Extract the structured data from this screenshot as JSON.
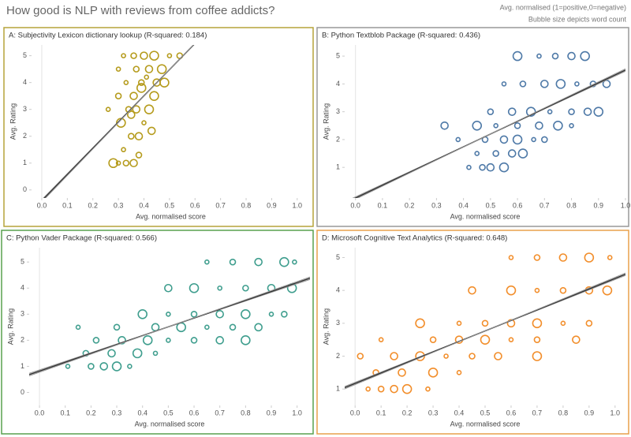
{
  "header": {
    "title": "How good is NLP with reviews from coffee addicts?",
    "notes": [
      "Avg. normalised (1=positive,0=negative)",
      "Bubble size depicts word count"
    ]
  },
  "chart_data": [
    {
      "type": "scatter",
      "title": "A: Subjectivity Lexicon dictionary lookup (R-squared: 0.184)",
      "x_label": "Avg. normalised score",
      "y_label": "Avg. Rating",
      "color": "#b59b1c",
      "border": "#b5a33a",
      "x": [
        0.3,
        0.33,
        0.36,
        0.28,
        0.32,
        0.35,
        0.38,
        0.31,
        0.4,
        0.34,
        0.37,
        0.42,
        0.26,
        0.3,
        0.36,
        0.44,
        0.33,
        0.39,
        0.45,
        0.48,
        0.3,
        0.37,
        0.42,
        0.47,
        0.32,
        0.36,
        0.4,
        0.44,
        0.5,
        0.54,
        0.35,
        0.39,
        0.41,
        0.38,
        0.43
      ],
      "y": [
        1,
        1,
        1,
        1,
        1.5,
        2,
        2,
        2.5,
        2.5,
        3,
        3,
        3,
        3,
        3.5,
        3.5,
        3.5,
        4,
        4,
        4,
        4,
        4.5,
        4.5,
        4.5,
        4.5,
        5,
        5,
        5,
        5,
        5,
        5,
        2.8,
        3.8,
        4.2,
        1.3,
        2.2
      ],
      "xlim": [
        -0.04,
        1.05
      ],
      "ylim": [
        -0.3,
        5.4
      ],
      "xticks": [
        {
          "value": 0,
          "label": "0.0"
        },
        0.1,
        0.2,
        0.3,
        0.4,
        0.5,
        0.6,
        0.7,
        0.8,
        0.9,
        {
          "value": 1,
          "label": "1.0"
        }
      ],
      "yticks": [
        0,
        1,
        2,
        3,
        4,
        5
      ]
    },
    {
      "type": "scatter",
      "title": "B: Python Textblob Package (R-squared: 0.436)",
      "x_label": "Avg. normalised score",
      "y_label": "Avg. Rating",
      "color": "#4e79a7",
      "border": "#999999",
      "x": [
        0.42,
        0.47,
        0.5,
        0.55,
        0.45,
        0.52,
        0.58,
        0.62,
        0.38,
        0.48,
        0.55,
        0.6,
        0.66,
        0.7,
        0.33,
        0.45,
        0.52,
        0.6,
        0.68,
        0.75,
        0.8,
        0.5,
        0.58,
        0.65,
        0.72,
        0.8,
        0.86,
        0.9,
        0.55,
        0.62,
        0.7,
        0.76,
        0.82,
        0.88,
        0.93,
        0.6,
        0.68,
        0.74,
        0.8,
        0.85
      ],
      "y": [
        1,
        1,
        1,
        1,
        1.5,
        1.5,
        1.5,
        1.5,
        2,
        2,
        2,
        2,
        2,
        2,
        2.5,
        2.5,
        2.5,
        2.5,
        2.5,
        2.5,
        2.5,
        3,
        3,
        3,
        3,
        3,
        3,
        3,
        4,
        4,
        4,
        4,
        4,
        4,
        4,
        5,
        5,
        5,
        5,
        5
      ],
      "xlim": [
        -0.04,
        1.0
      ],
      "ylim": [
        -0.1,
        5.4
      ],
      "xticks": [
        {
          "value": 0,
          "label": "0.0"
        },
        0.1,
        0.2,
        0.3,
        0.4,
        0.5,
        0.6,
        0.7,
        0.8,
        0.9,
        {
          "value": 1,
          "label": "1.0"
        }
      ],
      "yticks": [
        1,
        2,
        3,
        4,
        5
      ]
    },
    {
      "type": "scatter",
      "title": "C: Python Vader Package (R-squared: 0.566)",
      "x_label": "Avg. normalised score",
      "y_label": "Avg. Rating",
      "color": "#3f9e8e",
      "border": "#59a14f",
      "x": [
        0.11,
        0.2,
        0.25,
        0.3,
        0.35,
        0.18,
        0.28,
        0.38,
        0.45,
        0.22,
        0.32,
        0.42,
        0.5,
        0.6,
        0.7,
        0.8,
        0.15,
        0.3,
        0.45,
        0.55,
        0.65,
        0.75,
        0.85,
        0.4,
        0.5,
        0.6,
        0.7,
        0.8,
        0.9,
        0.95,
        0.5,
        0.6,
        0.7,
        0.8,
        0.9,
        0.98,
        0.65,
        0.75,
        0.85,
        0.95,
        0.99
      ],
      "y": [
        1,
        1,
        1,
        1,
        1,
        1.5,
        1.5,
        1.5,
        1.5,
        2,
        2,
        2,
        2,
        2,
        2,
        2,
        2.5,
        2.5,
        2.5,
        2.5,
        2.5,
        2.5,
        2.5,
        3,
        3,
        3,
        3,
        3,
        3,
        3,
        4,
        4,
        4,
        4,
        4,
        4,
        5,
        5,
        5,
        5,
        5
      ],
      "xlim": [
        -0.04,
        1.05
      ],
      "ylim": [
        -0.5,
        5.55
      ],
      "xticks": [
        {
          "value": 0,
          "label": "0.0"
        },
        0.1,
        0.2,
        0.3,
        0.4,
        0.5,
        0.6,
        0.7,
        0.8,
        0.9,
        {
          "value": 1,
          "label": "1.0"
        }
      ],
      "yticks": [
        0,
        1,
        2,
        3,
        4,
        5
      ]
    },
    {
      "type": "scatter",
      "title": "D: Microsoft Cognitive Text Analytics (R-squared: 0.648)",
      "x_label": "Avg. normalised score",
      "y_label": "Avg. Rating",
      "color": "#f28e2b",
      "border": "#e8a04c",
      "x": [
        0.05,
        0.1,
        0.15,
        0.2,
        0.28,
        0.08,
        0.18,
        0.3,
        0.4,
        0.02,
        0.15,
        0.25,
        0.35,
        0.45,
        0.55,
        0.7,
        0.1,
        0.3,
        0.4,
        0.5,
        0.6,
        0.7,
        0.85,
        0.25,
        0.4,
        0.5,
        0.6,
        0.7,
        0.8,
        0.9,
        0.45,
        0.6,
        0.7,
        0.8,
        0.9,
        0.97,
        0.6,
        0.7,
        0.8,
        0.9,
        0.98
      ],
      "y": [
        1,
        1,
        1,
        1,
        1,
        1.5,
        1.5,
        1.5,
        1.5,
        2,
        2,
        2,
        2,
        2,
        2,
        2,
        2.5,
        2.5,
        2.5,
        2.5,
        2.5,
        2.5,
        2.5,
        3,
        3,
        3,
        3,
        3,
        3,
        3,
        4,
        4,
        4,
        4,
        4,
        4,
        5,
        5,
        5,
        5,
        5
      ],
      "xlim": [
        -0.04,
        1.04
      ],
      "ylim": [
        0.5,
        5.3
      ],
      "xticks": [
        {
          "value": 0,
          "label": "0.0"
        },
        0.1,
        0.2,
        0.3,
        0.4,
        0.5,
        0.6,
        0.7,
        0.8,
        0.9,
        {
          "value": 1,
          "label": "1.0"
        }
      ],
      "yticks": [
        1,
        2,
        3,
        4,
        5
      ]
    }
  ]
}
